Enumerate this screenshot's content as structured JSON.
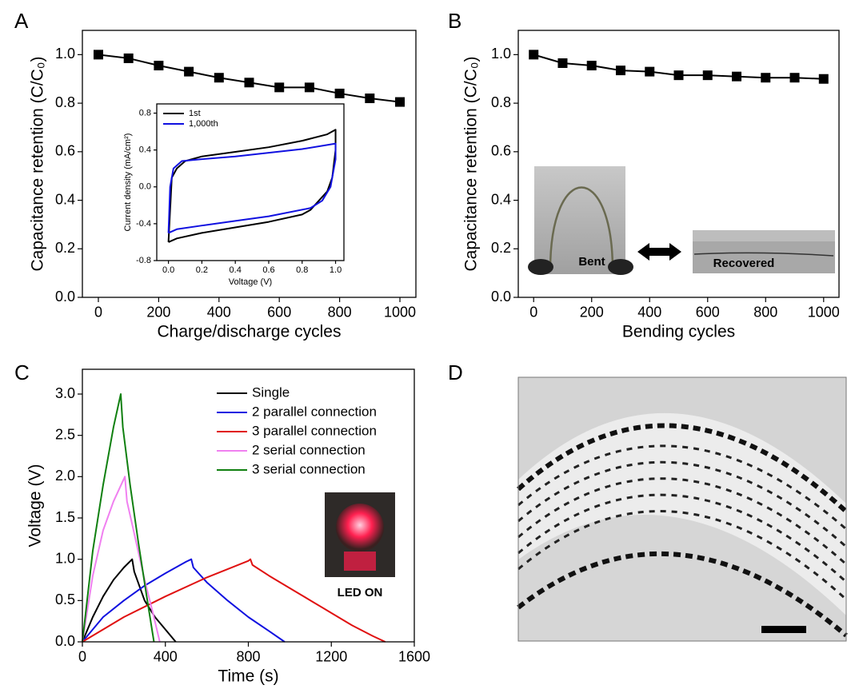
{
  "chart_data": [
    {
      "panel": "A",
      "type": "line",
      "xlabel": "Charge/discharge cycles",
      "ylabel": "Capacitance retention (C/C₀)",
      "xlim": [
        -53,
        1053
      ],
      "ylim": [
        0,
        1.1
      ],
      "xticks": [
        0,
        200,
        400,
        600,
        800,
        1000
      ],
      "yticks": [
        {
          "value": 0,
          "label": "0.0"
        },
        0.2,
        0.4,
        0.6,
        0.8,
        {
          "value": 1,
          "label": "1.0"
        }
      ],
      "x": [
        0,
        100,
        200,
        300,
        400,
        500,
        600,
        700,
        800,
        900,
        1000
      ],
      "series": [
        {
          "color": "#000000",
          "marker": "square",
          "values": [
            1.0,
            0.985,
            0.955,
            0.93,
            0.905,
            0.885,
            0.865,
            0.865,
            0.84,
            0.82,
            0.805
          ]
        }
      ]
    },
    {
      "type": "line",
      "xlabel": "Voltage (V)",
      "ylabel": "Current density (mA/cm²)",
      "legend": "upper left",
      "xlim": [
        -0.07,
        1.05
      ],
      "ylim": [
        -0.8,
        0.9
      ],
      "xticks": [
        {
          "value": 0,
          "label": "0.0"
        },
        0.2,
        0.4,
        0.6,
        0.8,
        {
          "value": 1,
          "label": "1.0"
        }
      ],
      "yticks": [
        -0.8,
        -0.4,
        {
          "value": 0,
          "label": "0.0"
        },
        0.4,
        0.8
      ],
      "series": [
        {
          "name": "1st",
          "color": "#000000",
          "x": [
            0,
            0.02,
            0.05,
            0.1,
            0.2,
            0.4,
            0.6,
            0.8,
            0.95,
            1.0,
            1.0,
            0.98,
            0.95,
            0.9,
            0.85,
            0.8,
            0.6,
            0.4,
            0.2,
            0.05,
            0
          ],
          "values": [
            -0.6,
            0.1,
            0.2,
            0.28,
            0.33,
            0.38,
            0.43,
            0.5,
            0.57,
            0.62,
            0.4,
            0.1,
            -0.05,
            -0.15,
            -0.25,
            -0.3,
            -0.38,
            -0.44,
            -0.5,
            -0.56,
            -0.6
          ]
        },
        {
          "name": "1,000th",
          "color": "#1010e0",
          "x": [
            0,
            0.01,
            0.03,
            0.08,
            0.2,
            0.4,
            0.6,
            0.8,
            1.0,
            1.0,
            0.97,
            0.92,
            0.85,
            0.6,
            0.4,
            0.2,
            0.05,
            0
          ],
          "values": [
            -0.5,
            0,
            0.2,
            0.28,
            0.3,
            0.33,
            0.37,
            0.41,
            0.47,
            0.3,
            0.0,
            -0.15,
            -0.23,
            -0.32,
            -0.37,
            -0.42,
            -0.46,
            -0.5
          ]
        }
      ]
    },
    {
      "panel": "B",
      "type": "line",
      "xlabel": "Bending cycles",
      "ylabel": "Capacitance retention (C/C₀)",
      "annotations": [
        "Bent",
        "Recovered"
      ],
      "xlim": [
        -53,
        1053
      ],
      "ylim": [
        0,
        1.1
      ],
      "xticks": [
        0,
        200,
        400,
        600,
        800,
        1000
      ],
      "yticks": [
        {
          "value": 0,
          "label": "0.0"
        },
        0.2,
        0.4,
        0.6,
        0.8,
        {
          "value": 1,
          "label": "1.0"
        }
      ],
      "x": [
        0,
        100,
        200,
        300,
        400,
        500,
        600,
        700,
        800,
        900,
        1000
      ],
      "series": [
        {
          "color": "#000000",
          "marker": "square",
          "values": [
            1.0,
            0.965,
            0.955,
            0.935,
            0.93,
            0.915,
            0.915,
            0.91,
            0.905,
            0.905,
            0.9
          ]
        }
      ]
    },
    {
      "panel": "C",
      "type": "line",
      "xlabel": "Time (s)",
      "ylabel": "Voltage (V)",
      "legend": "upper right",
      "annotations": [
        "LED ON"
      ],
      "xlim": [
        0,
        1600
      ],
      "ylim": [
        0,
        3.3
      ],
      "xticks": [
        0,
        400,
        800,
        1200,
        1600
      ],
      "yticks": [
        {
          "value": 0,
          "label": "0.0"
        },
        0.5,
        {
          "value": 1,
          "label": "1.0"
        },
        1.5,
        {
          "value": 2,
          "label": "2.0"
        },
        2.5,
        {
          "value": 3,
          "label": "3.0"
        }
      ],
      "series": [
        {
          "name": "Single",
          "color": "#000000",
          "x": [
            0,
            50,
            100,
            150,
            200,
            240,
            250,
            300,
            350,
            400,
            450
          ],
          "values": [
            0,
            0.3,
            0.55,
            0.75,
            0.9,
            1.0,
            0.85,
            0.5,
            0.3,
            0.15,
            0
          ]
        },
        {
          "name": "2 parallel connection",
          "color": "#1010e0",
          "x": [
            0,
            100,
            200,
            300,
            400,
            500,
            525,
            535,
            600,
            700,
            800,
            900,
            975
          ],
          "values": [
            0,
            0.3,
            0.5,
            0.68,
            0.83,
            0.97,
            1.0,
            0.9,
            0.72,
            0.5,
            0.3,
            0.13,
            0
          ]
        },
        {
          "name": "3 parallel connection",
          "color": "#e01010",
          "x": [
            0,
            200,
            400,
            600,
            800,
            810,
            820,
            900,
            1000,
            1100,
            1200,
            1300,
            1400,
            1460
          ],
          "values": [
            0,
            0.3,
            0.55,
            0.78,
            0.98,
            1.0,
            0.93,
            0.8,
            0.65,
            0.5,
            0.35,
            0.2,
            0.07,
            0
          ]
        },
        {
          "name": "2 serial connection",
          "color": "#f080f0",
          "x": [
            0,
            50,
            100,
            150,
            205,
            215,
            260,
            300,
            340,
            373
          ],
          "values": [
            0,
            0.8,
            1.35,
            1.7,
            2.0,
            1.7,
            1.2,
            0.75,
            0.35,
            0
          ]
        },
        {
          "name": "3 serial connection",
          "color": "#108010",
          "x": [
            0,
            50,
            100,
            150,
            185,
            195,
            230,
            270,
            310,
            345
          ],
          "values": [
            0,
            1.1,
            1.9,
            2.6,
            3.0,
            2.6,
            1.9,
            1.2,
            0.55,
            0
          ]
        }
      ]
    }
  ],
  "photo": {
    "panel": "D"
  }
}
